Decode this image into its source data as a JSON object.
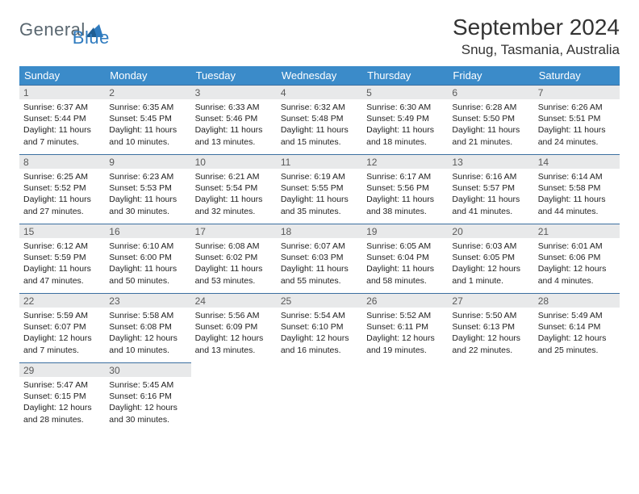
{
  "logo": {
    "word1": "General",
    "word2": "Blue"
  },
  "title": "September 2024",
  "location": "Snug, Tasmania, Australia",
  "header_bg": "#3b8bc9",
  "header_fg": "#ffffff",
  "daynum_bg": "#e8e9ea",
  "daynum_border": "#3b6fa0",
  "day_headers": [
    "Sunday",
    "Monday",
    "Tuesday",
    "Wednesday",
    "Thursday",
    "Friday",
    "Saturday"
  ],
  "weeks": [
    [
      {
        "n": "1",
        "sr": "Sunrise: 6:37 AM",
        "ss": "Sunset: 5:44 PM",
        "dl": "Daylight: 11 hours and 7 minutes."
      },
      {
        "n": "2",
        "sr": "Sunrise: 6:35 AM",
        "ss": "Sunset: 5:45 PM",
        "dl": "Daylight: 11 hours and 10 minutes."
      },
      {
        "n": "3",
        "sr": "Sunrise: 6:33 AM",
        "ss": "Sunset: 5:46 PM",
        "dl": "Daylight: 11 hours and 13 minutes."
      },
      {
        "n": "4",
        "sr": "Sunrise: 6:32 AM",
        "ss": "Sunset: 5:48 PM",
        "dl": "Daylight: 11 hours and 15 minutes."
      },
      {
        "n": "5",
        "sr": "Sunrise: 6:30 AM",
        "ss": "Sunset: 5:49 PM",
        "dl": "Daylight: 11 hours and 18 minutes."
      },
      {
        "n": "6",
        "sr": "Sunrise: 6:28 AM",
        "ss": "Sunset: 5:50 PM",
        "dl": "Daylight: 11 hours and 21 minutes."
      },
      {
        "n": "7",
        "sr": "Sunrise: 6:26 AM",
        "ss": "Sunset: 5:51 PM",
        "dl": "Daylight: 11 hours and 24 minutes."
      }
    ],
    [
      {
        "n": "8",
        "sr": "Sunrise: 6:25 AM",
        "ss": "Sunset: 5:52 PM",
        "dl": "Daylight: 11 hours and 27 minutes."
      },
      {
        "n": "9",
        "sr": "Sunrise: 6:23 AM",
        "ss": "Sunset: 5:53 PM",
        "dl": "Daylight: 11 hours and 30 minutes."
      },
      {
        "n": "10",
        "sr": "Sunrise: 6:21 AM",
        "ss": "Sunset: 5:54 PM",
        "dl": "Daylight: 11 hours and 32 minutes."
      },
      {
        "n": "11",
        "sr": "Sunrise: 6:19 AM",
        "ss": "Sunset: 5:55 PM",
        "dl": "Daylight: 11 hours and 35 minutes."
      },
      {
        "n": "12",
        "sr": "Sunrise: 6:17 AM",
        "ss": "Sunset: 5:56 PM",
        "dl": "Daylight: 11 hours and 38 minutes."
      },
      {
        "n": "13",
        "sr": "Sunrise: 6:16 AM",
        "ss": "Sunset: 5:57 PM",
        "dl": "Daylight: 11 hours and 41 minutes."
      },
      {
        "n": "14",
        "sr": "Sunrise: 6:14 AM",
        "ss": "Sunset: 5:58 PM",
        "dl": "Daylight: 11 hours and 44 minutes."
      }
    ],
    [
      {
        "n": "15",
        "sr": "Sunrise: 6:12 AM",
        "ss": "Sunset: 5:59 PM",
        "dl": "Daylight: 11 hours and 47 minutes."
      },
      {
        "n": "16",
        "sr": "Sunrise: 6:10 AM",
        "ss": "Sunset: 6:00 PM",
        "dl": "Daylight: 11 hours and 50 minutes."
      },
      {
        "n": "17",
        "sr": "Sunrise: 6:08 AM",
        "ss": "Sunset: 6:02 PM",
        "dl": "Daylight: 11 hours and 53 minutes."
      },
      {
        "n": "18",
        "sr": "Sunrise: 6:07 AM",
        "ss": "Sunset: 6:03 PM",
        "dl": "Daylight: 11 hours and 55 minutes."
      },
      {
        "n": "19",
        "sr": "Sunrise: 6:05 AM",
        "ss": "Sunset: 6:04 PM",
        "dl": "Daylight: 11 hours and 58 minutes."
      },
      {
        "n": "20",
        "sr": "Sunrise: 6:03 AM",
        "ss": "Sunset: 6:05 PM",
        "dl": "Daylight: 12 hours and 1 minute."
      },
      {
        "n": "21",
        "sr": "Sunrise: 6:01 AM",
        "ss": "Sunset: 6:06 PM",
        "dl": "Daylight: 12 hours and 4 minutes."
      }
    ],
    [
      {
        "n": "22",
        "sr": "Sunrise: 5:59 AM",
        "ss": "Sunset: 6:07 PM",
        "dl": "Daylight: 12 hours and 7 minutes."
      },
      {
        "n": "23",
        "sr": "Sunrise: 5:58 AM",
        "ss": "Sunset: 6:08 PM",
        "dl": "Daylight: 12 hours and 10 minutes."
      },
      {
        "n": "24",
        "sr": "Sunrise: 5:56 AM",
        "ss": "Sunset: 6:09 PM",
        "dl": "Daylight: 12 hours and 13 minutes."
      },
      {
        "n": "25",
        "sr": "Sunrise: 5:54 AM",
        "ss": "Sunset: 6:10 PM",
        "dl": "Daylight: 12 hours and 16 minutes."
      },
      {
        "n": "26",
        "sr": "Sunrise: 5:52 AM",
        "ss": "Sunset: 6:11 PM",
        "dl": "Daylight: 12 hours and 19 minutes."
      },
      {
        "n": "27",
        "sr": "Sunrise: 5:50 AM",
        "ss": "Sunset: 6:13 PM",
        "dl": "Daylight: 12 hours and 22 minutes."
      },
      {
        "n": "28",
        "sr": "Sunrise: 5:49 AM",
        "ss": "Sunset: 6:14 PM",
        "dl": "Daylight: 12 hours and 25 minutes."
      }
    ],
    [
      {
        "n": "29",
        "sr": "Sunrise: 5:47 AM",
        "ss": "Sunset: 6:15 PM",
        "dl": "Daylight: 12 hours and 28 minutes."
      },
      {
        "n": "30",
        "sr": "Sunrise: 5:45 AM",
        "ss": "Sunset: 6:16 PM",
        "dl": "Daylight: 12 hours and 30 minutes."
      },
      null,
      null,
      null,
      null,
      null
    ]
  ]
}
